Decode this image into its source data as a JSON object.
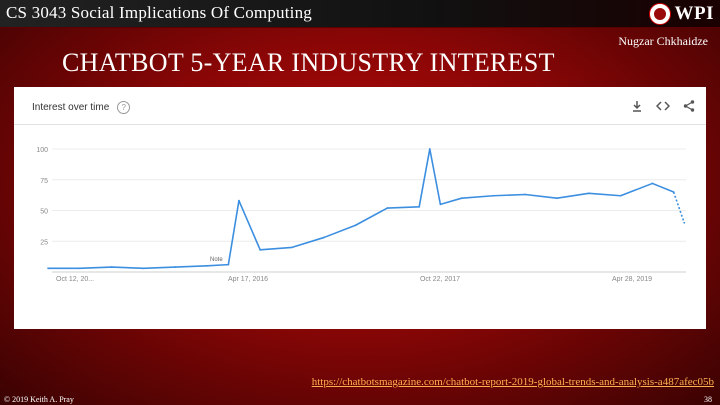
{
  "header": {
    "course_title": "CS 3043 Social Implications Of Computing",
    "logo_text": "WPI",
    "author": "Nugzar Chkhaidze"
  },
  "slide": {
    "title": "CHATBOT 5-YEAR INDUSTRY INTEREST"
  },
  "trends_panel": {
    "heading": "Interest over time",
    "help_icon": "question-circle-icon",
    "tools": [
      "download-icon",
      "embed-code-icon",
      "share-icon"
    ]
  },
  "chart_data": {
    "type": "line",
    "title": "",
    "xlabel": "",
    "ylabel": "",
    "ylim": [
      0,
      100
    ],
    "yticks": [
      25,
      50,
      75,
      100
    ],
    "x_tick_labels": [
      "Oct 12, 20...",
      "Apr 17, 2016",
      "Oct 22, 2017",
      "Apr 28, 2019"
    ],
    "x_range": [
      "2014-10-12",
      "2019-10-06"
    ],
    "grid": true,
    "annotation": "Note",
    "series": [
      {
        "color": "#3c8fe0",
        "x": [
          "2014-10",
          "2015-01",
          "2015-04",
          "2015-07",
          "2015-10",
          "2016-01",
          "2016-03",
          "2016-04",
          "2016-06",
          "2016-09",
          "2016-12",
          "2017-03",
          "2017-06",
          "2017-09",
          "2017-10",
          "2017-11",
          "2018-01",
          "2018-04",
          "2018-07",
          "2018-10",
          "2019-01",
          "2019-04",
          "2019-07",
          "2019-09",
          "2019-10"
        ],
        "values": [
          3,
          3,
          4,
          3,
          4,
          5,
          6,
          58,
          18,
          20,
          28,
          38,
          52,
          53,
          100,
          55,
          60,
          62,
          63,
          60,
          64,
          62,
          72,
          65,
          40
        ]
      }
    ]
  },
  "source": {
    "url": "https://chatbotsmagazine.com/chatbot-report-2019-global-trends-and-analysis-a487afec05b"
  },
  "footer": {
    "copyright": "© 2019 Keith A. Pray",
    "page_number": "38"
  }
}
